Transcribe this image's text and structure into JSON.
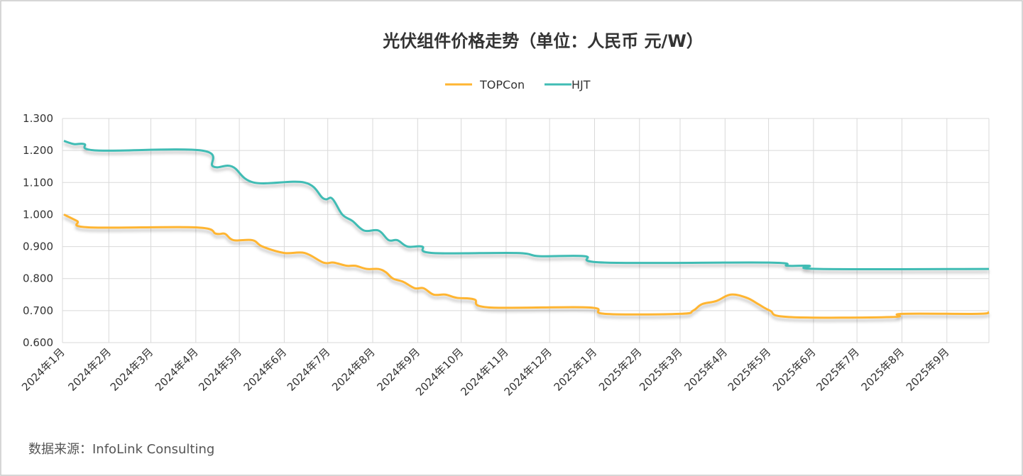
{
  "chart_data": {
    "type": "line",
    "title": "光伏组件价格走势（单位：人民币 元/W）",
    "xlabel": "",
    "ylabel": "",
    "ylim": [
      0.6,
      1.3
    ],
    "yticks": [
      "0.600",
      "0.700",
      "0.800",
      "0.900",
      "1.000",
      "1.100",
      "1.200",
      "1.300"
    ],
    "ytick_values": [
      0.6,
      0.7,
      0.8,
      0.9,
      1.0,
      1.1,
      1.2,
      1.3
    ],
    "xlim": [
      "2024-01-01",
      "2025-09-30"
    ],
    "x_tick_labels": [
      "2024年1月",
      "2024年2月",
      "2024年3月",
      "2024年4月",
      "2024年5月",
      "2024年6月",
      "2024年7月",
      "2024年8月",
      "2024年9月",
      "2024年10月",
      "2024年11月",
      "2024年12月",
      "2025年1月",
      "2025年2月",
      "2025年3月",
      "2025年4月",
      "2025年5月",
      "2025年6月",
      "2025年7月",
      "2025年8月",
      "2025年9月"
    ],
    "x_tick_dates": [
      "2024-01-01",
      "2024-02-01",
      "2024-03-01",
      "2024-04-01",
      "2024-05-01",
      "2024-06-01",
      "2024-07-01",
      "2024-08-01",
      "2024-09-01",
      "2024-10-01",
      "2024-11-01",
      "2024-12-01",
      "2025-01-01",
      "2025-02-01",
      "2025-03-01",
      "2025-04-01",
      "2025-05-01",
      "2025-06-01",
      "2025-07-01",
      "2025-08-01",
      "2025-09-01"
    ],
    "grid": true,
    "legend_position": "top-center",
    "series": [
      {
        "name": "TOPCon",
        "color": "#FFB531",
        "points": [
          [
            "2024-01-01",
            1.0
          ],
          [
            "2024-01-10",
            0.98
          ],
          [
            "2024-01-18",
            0.96
          ],
          [
            "2024-04-01",
            0.96
          ],
          [
            "2024-04-15",
            0.94
          ],
          [
            "2024-04-21",
            0.94
          ],
          [
            "2024-04-27",
            0.92
          ],
          [
            "2024-05-10",
            0.92
          ],
          [
            "2024-05-17",
            0.9
          ],
          [
            "2024-06-01",
            0.88
          ],
          [
            "2024-06-15",
            0.88
          ],
          [
            "2024-06-28",
            0.85
          ],
          [
            "2024-07-05",
            0.85
          ],
          [
            "2024-07-14",
            0.84
          ],
          [
            "2024-07-20",
            0.84
          ],
          [
            "2024-07-28",
            0.83
          ],
          [
            "2024-08-05",
            0.83
          ],
          [
            "2024-08-10",
            0.82
          ],
          [
            "2024-08-15",
            0.8
          ],
          [
            "2024-08-22",
            0.79
          ],
          [
            "2024-08-30",
            0.77
          ],
          [
            "2024-09-05",
            0.77
          ],
          [
            "2024-09-12",
            0.75
          ],
          [
            "2024-09-20",
            0.75
          ],
          [
            "2024-09-28",
            0.74
          ],
          [
            "2024-10-10",
            0.735
          ],
          [
            "2024-10-20",
            0.71
          ],
          [
            "2024-12-28",
            0.71
          ],
          [
            "2025-01-08",
            0.69
          ],
          [
            "2025-03-01",
            0.69
          ],
          [
            "2025-03-10",
            0.7
          ],
          [
            "2025-03-16",
            0.72
          ],
          [
            "2025-03-26",
            0.73
          ],
          [
            "2025-04-05",
            0.75
          ],
          [
            "2025-04-16",
            0.74
          ],
          [
            "2025-04-24",
            0.72
          ],
          [
            "2025-05-02",
            0.7
          ],
          [
            "2025-05-15",
            0.68
          ],
          [
            "2025-07-25",
            0.68
          ],
          [
            "2025-08-01",
            0.69
          ],
          [
            "2025-09-22",
            0.69
          ],
          [
            "2025-09-30",
            0.695
          ]
        ]
      },
      {
        "name": "HJT",
        "color": "#40BCB4",
        "points": [
          [
            "2024-01-01",
            1.23
          ],
          [
            "2024-01-08",
            1.22
          ],
          [
            "2024-01-15",
            1.22
          ],
          [
            "2024-01-24",
            1.2
          ],
          [
            "2024-04-05",
            1.2
          ],
          [
            "2024-04-13",
            1.15
          ],
          [
            "2024-04-26",
            1.15
          ],
          [
            "2024-05-11",
            1.1
          ],
          [
            "2024-06-15",
            1.1
          ],
          [
            "2024-06-28",
            1.05
          ],
          [
            "2024-07-04",
            1.05
          ],
          [
            "2024-07-11",
            1.0
          ],
          [
            "2024-07-18",
            0.98
          ],
          [
            "2024-07-26",
            0.95
          ],
          [
            "2024-08-05",
            0.95
          ],
          [
            "2024-08-12",
            0.92
          ],
          [
            "2024-08-18",
            0.92
          ],
          [
            "2024-08-25",
            0.9
          ],
          [
            "2024-09-04",
            0.9
          ],
          [
            "2024-09-11",
            0.88
          ],
          [
            "2024-11-08",
            0.88
          ],
          [
            "2024-11-24",
            0.87
          ],
          [
            "2024-12-25",
            0.87
          ],
          [
            "2025-01-08",
            0.85
          ],
          [
            "2025-05-01",
            0.85
          ],
          [
            "2025-05-14",
            0.84
          ],
          [
            "2025-05-29",
            0.84
          ],
          [
            "2025-06-05",
            0.83
          ],
          [
            "2025-09-30",
            0.83
          ]
        ]
      }
    ],
    "source": "数据来源：InfoLink Consulting"
  }
}
